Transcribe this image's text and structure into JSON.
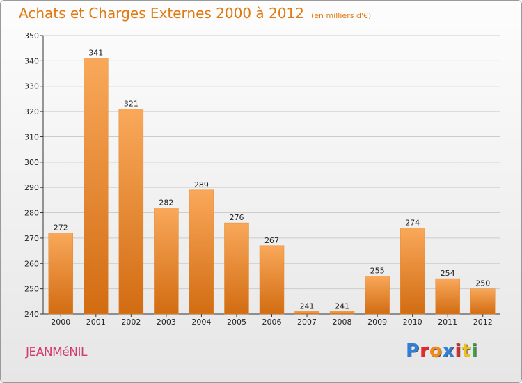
{
  "header": {
    "title": "Achats et Charges Externes 2000 à 2012",
    "subtitle": "(en milliers d'€)"
  },
  "footer": {
    "commune": "JEANMéNIL",
    "brand_letters": [
      "P",
      "r",
      "o",
      "x",
      "i",
      "t",
      "i"
    ],
    "brand_colors": [
      "#2e7fd8",
      "#e8272a",
      "#f08a18",
      "#2e7fd8",
      "#e8272a",
      "#f0c020",
      "#3aaa3a"
    ]
  },
  "colors": {
    "bar_light": "#f9a85a",
    "bar_dark": "#d26c12",
    "title": "#e07a10",
    "grid": "#cccccc"
  },
  "chart_data": {
    "type": "bar",
    "title": "Achats et Charges Externes 2000 à 2012",
    "subtitle": "(en milliers d'€)",
    "xlabel": "",
    "ylabel": "",
    "categories": [
      "2000",
      "2001",
      "2002",
      "2003",
      "2004",
      "2005",
      "2006",
      "2007",
      "2008",
      "2009",
      "2010",
      "2011",
      "2012"
    ],
    "values": [
      272,
      341,
      321,
      282,
      289,
      276,
      267,
      241,
      241,
      255,
      274,
      254,
      250
    ],
    "ylim": [
      240,
      350
    ],
    "yticks": [
      240,
      250,
      260,
      270,
      280,
      290,
      300,
      310,
      320,
      330,
      340,
      350
    ],
    "grid": true,
    "legend": "none"
  }
}
